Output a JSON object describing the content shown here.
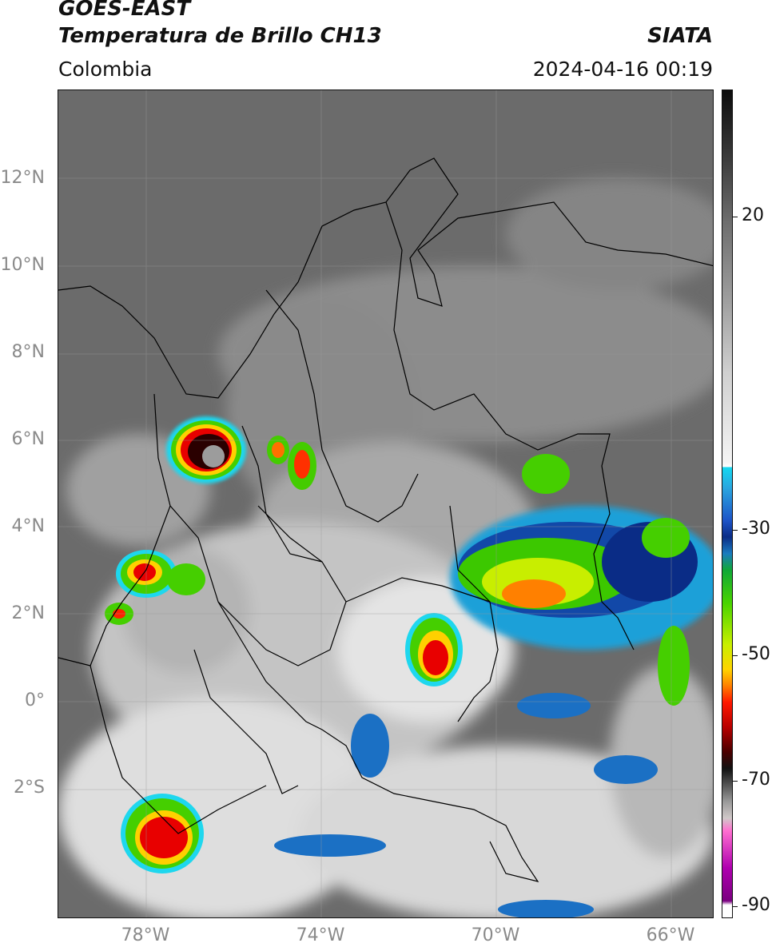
{
  "header": {
    "satellite": "GOES-EAST",
    "product": "Temperatura de Brillo CH13",
    "region": "Colombia",
    "agency": "SIATA",
    "datetime": "2024-04-16 00:19"
  },
  "axes": {
    "lat_labels": [
      "12°N",
      "10°N",
      "8°N",
      "6°N",
      "4°N",
      "2°N",
      "0°",
      "2°S"
    ],
    "lon_labels": [
      "78°W",
      "74°W",
      "70°W",
      "66°W"
    ]
  },
  "colorbar": {
    "labels": [
      "20",
      "-30",
      "-50",
      "-70",
      "-90"
    ],
    "colors": {
      "cold_black": "#0c0c0c",
      "cyan": "#15d8f0",
      "blue": "#1d55c8",
      "green": "#49d400",
      "yellow": "#ffd400",
      "red": "#ff1800",
      "magenta": "#b000b0"
    }
  },
  "map": {
    "background_colors": {
      "warm": "#6a6a6a",
      "mid": "#9a9a9a",
      "cold_cloud": "#e8e8e8"
    },
    "features": [
      "convective-cloud-cells",
      "country-borders",
      "department-borders",
      "coastline",
      "graticule"
    ]
  }
}
